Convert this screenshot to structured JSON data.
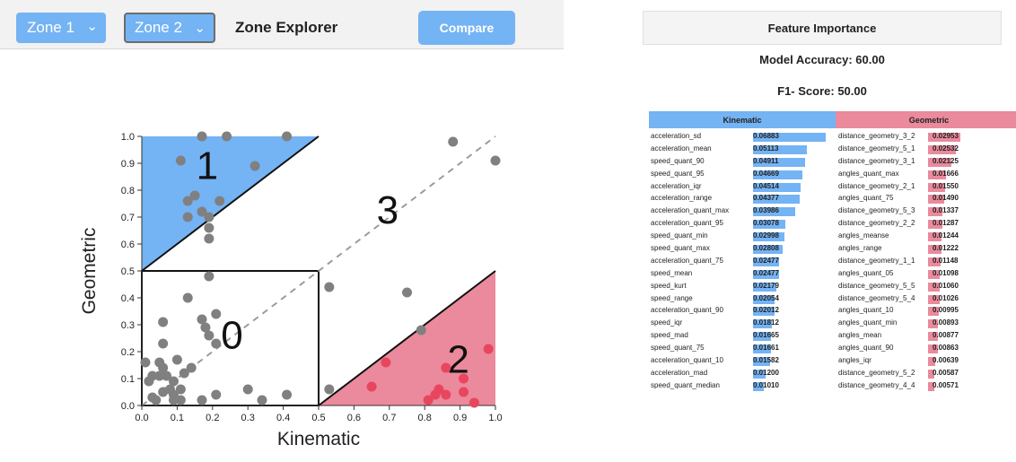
{
  "toolbar": {
    "zone_a": "Zone 1",
    "zone_b": "Zone 2",
    "title": "Zone Explorer",
    "compare_label": "Compare"
  },
  "colors": {
    "accent_blue": "#74b3f4",
    "accent_red": "#ea8a9c",
    "point_gray": "#808080",
    "point_red": "#e8465e"
  },
  "chart_data": {
    "type": "scatter",
    "title": "",
    "xlabel": "Kinematic",
    "ylabel": "Geometric",
    "xlim": [
      0,
      1
    ],
    "ylim": [
      0,
      1
    ],
    "xticks": [
      "0.0",
      "0.1",
      "0.2",
      "0.3",
      "0.4",
      "0.5",
      "0.6",
      "0.7",
      "0.8",
      "0.9",
      "1.0"
    ],
    "yticks": [
      "0.0",
      "0.1",
      "0.2",
      "0.3",
      "0.4",
      "0.5",
      "0.6",
      "0.7",
      "0.8",
      "0.9",
      "1.0"
    ],
    "zones": [
      {
        "label": "0",
        "kind": "square",
        "x": [
          0,
          0.5
        ],
        "y": [
          0,
          0.5
        ]
      },
      {
        "label": "1",
        "kind": "triangle",
        "color": "#74b3f4",
        "points": [
          [
            0,
            0.5
          ],
          [
            0,
            1
          ],
          [
            0.5,
            1
          ]
        ]
      },
      {
        "label": "2",
        "kind": "triangle",
        "color": "#ea8a9c",
        "points": [
          [
            0.5,
            0
          ],
          [
            1,
            0
          ],
          [
            1,
            0.5
          ]
        ]
      },
      {
        "label": "3",
        "kind": "diagonal",
        "points": [
          [
            0,
            0
          ],
          [
            1,
            1
          ]
        ]
      }
    ],
    "series": [
      {
        "color": "#808080",
        "points": [
          [
            0.17,
            1.0
          ],
          [
            0.24,
            1.0
          ],
          [
            0.41,
            1.0
          ],
          [
            0.11,
            0.91
          ],
          [
            0.32,
            0.89
          ],
          [
            0.13,
            0.76
          ],
          [
            0.15,
            0.78
          ],
          [
            0.22,
            0.76
          ],
          [
            0.13,
            0.7
          ],
          [
            0.17,
            0.72
          ],
          [
            0.19,
            0.7
          ],
          [
            0.19,
            0.66
          ],
          [
            0.19,
            0.62
          ],
          [
            0.19,
            0.48
          ],
          [
            0.13,
            0.4
          ],
          [
            0.21,
            0.34
          ],
          [
            0.17,
            0.32
          ],
          [
            0.06,
            0.31
          ],
          [
            0.06,
            0.23
          ],
          [
            0.19,
            0.26
          ],
          [
            0.18,
            0.29
          ],
          [
            0.21,
            0.23
          ],
          [
            0.05,
            0.16
          ],
          [
            0.06,
            0.14
          ],
          [
            0.1,
            0.17
          ],
          [
            0.12,
            0.12
          ],
          [
            0.14,
            0.14
          ],
          [
            0.01,
            0.16
          ],
          [
            0.03,
            0.11
          ],
          [
            0.05,
            0.11
          ],
          [
            0.07,
            0.11
          ],
          [
            0.02,
            0.09
          ],
          [
            0.09,
            0.09
          ],
          [
            0.06,
            0.05
          ],
          [
            0.08,
            0.06
          ],
          [
            0.09,
            0.04
          ],
          [
            0.11,
            0.06
          ],
          [
            0.03,
            0.03
          ],
          [
            0.04,
            0.02
          ],
          [
            0.09,
            0.02
          ],
          [
            0.11,
            0.02
          ],
          [
            0.17,
            0.02
          ],
          [
            0.21,
            0.04
          ],
          [
            0.3,
            0.06
          ],
          [
            0.34,
            0.02
          ],
          [
            0.41,
            0.04
          ],
          [
            0.53,
            0.06
          ],
          [
            0.53,
            0.44
          ],
          [
            0.75,
            0.42
          ],
          [
            0.79,
            0.28
          ],
          [
            0.88,
            0.98
          ],
          [
            1.0,
            0.91
          ]
        ]
      },
      {
        "color": "#e8465e",
        "points": [
          [
            0.65,
            0.07
          ],
          [
            0.69,
            0.16
          ],
          [
            0.81,
            0.02
          ],
          [
            0.83,
            0.04
          ],
          [
            0.84,
            0.06
          ],
          [
            0.86,
            0.14
          ],
          [
            0.86,
            0.04
          ],
          [
            0.91,
            0.05
          ],
          [
            0.91,
            0.1
          ],
          [
            0.94,
            0.01
          ],
          [
            0.98,
            0.21
          ]
        ]
      }
    ]
  },
  "feature_panel": {
    "header": "Feature Importance",
    "accuracy": "Model Accuracy: 60.00",
    "f1": "F1- Score: 50.00",
    "kinematic_title": "Kinematic",
    "geometric_title": "Geometric",
    "kinematic": [
      {
        "name": "acceleration_sd",
        "value": "0.06883",
        "v": 0.06883
      },
      {
        "name": "acceleration_mean",
        "value": "0.05113",
        "v": 0.05113
      },
      {
        "name": "speed_quant_90",
        "value": "0.04911",
        "v": 0.04911
      },
      {
        "name": "speed_quant_95",
        "value": "0.04669",
        "v": 0.04669
      },
      {
        "name": "acceleration_iqr",
        "value": "0.04514",
        "v": 0.04514
      },
      {
        "name": "acceleration_range",
        "value": "0.04377",
        "v": 0.04377
      },
      {
        "name": "acceleration_quant_max",
        "value": "0.03986",
        "v": 0.03986
      },
      {
        "name": "acceleration_quant_95",
        "value": "0.03078",
        "v": 0.03078
      },
      {
        "name": "speed_quant_min",
        "value": "0.02998",
        "v": 0.02998
      },
      {
        "name": "speed_quant_max",
        "value": "0.02808",
        "v": 0.02808
      },
      {
        "name": "acceleration_quant_75",
        "value": "0.02477",
        "v": 0.02477
      },
      {
        "name": "speed_mean",
        "value": "0.02477",
        "v": 0.02477
      },
      {
        "name": "speed_kurt",
        "value": "0.02179",
        "v": 0.02179
      },
      {
        "name": "speed_range",
        "value": "0.02054",
        "v": 0.02054
      },
      {
        "name": "acceleration_quant_90",
        "value": "0.02012",
        "v": 0.02012
      },
      {
        "name": "speed_iqr",
        "value": "0.01812",
        "v": 0.01812
      },
      {
        "name": "speed_mad",
        "value": "0.01665",
        "v": 0.01665
      },
      {
        "name": "speed_quant_75",
        "value": "0.01661",
        "v": 0.01661
      },
      {
        "name": "acceleration_quant_10",
        "value": "0.01582",
        "v": 0.01582
      },
      {
        "name": "acceleration_mad",
        "value": "0.01200",
        "v": 0.012
      },
      {
        "name": "speed_quant_median",
        "value": "0.01010",
        "v": 0.0101
      }
    ],
    "geometric": [
      {
        "name": "distance_geometry_3_2",
        "value": "0.02953",
        "v": 0.02953
      },
      {
        "name": "distance_geometry_5_1",
        "value": "0.02532",
        "v": 0.02532
      },
      {
        "name": "distance_geometry_3_1",
        "value": "0.02125",
        "v": 0.02125
      },
      {
        "name": "angles_quant_max",
        "value": "0.01666",
        "v": 0.01666
      },
      {
        "name": "distance_geometry_2_1",
        "value": "0.01550",
        "v": 0.0155
      },
      {
        "name": "angles_quant_75",
        "value": "0.01490",
        "v": 0.0149
      },
      {
        "name": "distance_geometry_5_3",
        "value": "0.01337",
        "v": 0.01337
      },
      {
        "name": "distance_geometry_2_2",
        "value": "0.01287",
        "v": 0.01287
      },
      {
        "name": "angles_meanse",
        "value": "0.01244",
        "v": 0.01244
      },
      {
        "name": "angles_range",
        "value": "0.01222",
        "v": 0.01222
      },
      {
        "name": "distance_geometry_1_1",
        "value": "0.01148",
        "v": 0.01148
      },
      {
        "name": "angles_quant_05",
        "value": "0.01098",
        "v": 0.01098
      },
      {
        "name": "distance_geometry_5_5",
        "value": "0.01060",
        "v": 0.0106
      },
      {
        "name": "distance_geometry_5_4",
        "value": "0.01026",
        "v": 0.01026
      },
      {
        "name": "angles_quant_10",
        "value": "0.00995",
        "v": 0.00995
      },
      {
        "name": "angles_quant_min",
        "value": "0.00893",
        "v": 0.00893
      },
      {
        "name": "angles_mean",
        "value": "0.00877",
        "v": 0.00877
      },
      {
        "name": "angles_quant_90",
        "value": "0.00863",
        "v": 0.00863
      },
      {
        "name": "angles_iqr",
        "value": "0.00639",
        "v": 0.00639
      },
      {
        "name": "distance_geometry_5_2",
        "value": "0.00587",
        "v": 0.00587
      },
      {
        "name": "distance_geometry_4_4",
        "value": "0.00571",
        "v": 0.00571
      }
    ]
  }
}
